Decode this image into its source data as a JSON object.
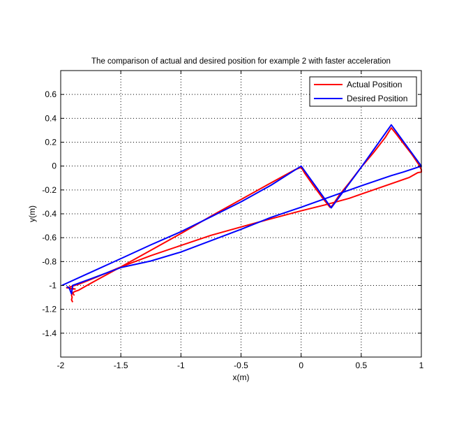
{
  "chart_data": {
    "type": "line",
    "title": "The comparison of actual and desired position for example 2 with faster acceleration",
    "xlabel": "x(m)",
    "ylabel": "y(m)",
    "xlim": [
      -2,
      1
    ],
    "ylim": [
      -1.6,
      0.8
    ],
    "xticks": [
      -2,
      -1.5,
      -1,
      -0.5,
      0,
      0.5,
      1
    ],
    "xtick_labels": [
      "-2",
      "-1.5",
      "-1",
      "-0.5",
      "0",
      "0.5",
      "1"
    ],
    "yticks": [
      -1.4,
      -1.2,
      -1,
      -0.8,
      -0.6,
      -0.4,
      -0.2,
      0,
      0.2,
      0.4,
      0.6
    ],
    "ytick_labels": [
      "-1.4",
      "-1.2",
      "-1",
      "-0.8",
      "-0.6",
      "-0.4",
      "-0.2",
      "0",
      "0.2",
      "0.4",
      "0.6"
    ],
    "grid": true,
    "legend_position": "top-right",
    "series": [
      {
        "name": "Actual Position",
        "color": "#ff0000",
        "points": [
          [
            -1.9,
            -1.14
          ],
          [
            -1.91,
            -1.12
          ],
          [
            -1.905,
            -1.1
          ],
          [
            -1.91,
            -1.08
          ],
          [
            -1.9,
            -1.06
          ],
          [
            -1.89,
            -1.08
          ],
          [
            -1.9,
            -1.06
          ],
          [
            -1.88,
            -1.05
          ],
          [
            -1.85,
            -1.04
          ],
          [
            -1.8,
            -1.01
          ],
          [
            -1.7,
            -0.955
          ],
          [
            -1.5,
            -0.845
          ],
          [
            -1.25,
            -0.705
          ],
          [
            -1.0,
            -0.565
          ],
          [
            -0.75,
            -0.42
          ],
          [
            -0.5,
            -0.28
          ],
          [
            -0.25,
            -0.14
          ],
          [
            -0.05,
            -0.03
          ],
          [
            0.0,
            -0.01
          ],
          [
            0.03,
            -0.06
          ],
          [
            0.1,
            -0.16
          ],
          [
            0.18,
            -0.27
          ],
          [
            0.24,
            -0.345
          ],
          [
            0.26,
            -0.33
          ],
          [
            0.32,
            -0.24
          ],
          [
            0.4,
            -0.14
          ],
          [
            0.5,
            -0.01
          ],
          [
            0.6,
            0.11
          ],
          [
            0.7,
            0.24
          ],
          [
            0.75,
            0.32
          ],
          [
            0.79,
            0.27
          ],
          [
            0.85,
            0.19
          ],
          [
            0.92,
            0.1
          ],
          [
            0.98,
            0.01
          ],
          [
            1.0,
            -0.03
          ],
          [
            1.0,
            -0.05
          ],
          [
            0.97,
            -0.055
          ],
          [
            0.9,
            -0.095
          ],
          [
            0.8,
            -0.13
          ],
          [
            0.6,
            -0.2
          ],
          [
            0.4,
            -0.27
          ],
          [
            0.2,
            -0.325
          ],
          [
            0.0,
            -0.375
          ],
          [
            -0.3,
            -0.455
          ],
          [
            -0.5,
            -0.51
          ],
          [
            -0.75,
            -0.58
          ],
          [
            -1.0,
            -0.665
          ],
          [
            -1.25,
            -0.75
          ],
          [
            -1.5,
            -0.845
          ],
          [
            -1.7,
            -0.93
          ],
          [
            -1.85,
            -0.99
          ],
          [
            -1.95,
            -1.02
          ],
          [
            -1.9,
            -1.025
          ],
          [
            -1.88,
            -1.03
          ],
          [
            -1.92,
            -1.03
          ]
        ]
      },
      {
        "name": "Desired Position",
        "color": "#0000ff",
        "points": [
          [
            -1.99,
            -1.0
          ],
          [
            -1.75,
            -0.89
          ],
          [
            -1.5,
            -0.775
          ],
          [
            -1.25,
            -0.66
          ],
          [
            -1.0,
            -0.55
          ],
          [
            -0.75,
            -0.425
          ],
          [
            -0.5,
            -0.3
          ],
          [
            -0.25,
            -0.16
          ],
          [
            0.0,
            0.0
          ],
          [
            0.25,
            -0.35
          ],
          [
            0.5,
            -0.01
          ],
          [
            0.75,
            0.345
          ],
          [
            1.0,
            0.0
          ],
          [
            0.85,
            -0.05
          ],
          [
            0.75,
            -0.08
          ],
          [
            0.5,
            -0.165
          ],
          [
            0.25,
            -0.255
          ],
          [
            0.0,
            -0.345
          ],
          [
            -0.25,
            -0.43
          ],
          [
            -0.5,
            -0.53
          ],
          [
            -0.75,
            -0.625
          ],
          [
            -1.0,
            -0.72
          ],
          [
            -1.25,
            -0.795
          ],
          [
            -1.5,
            -0.85
          ],
          [
            -1.75,
            -0.945
          ],
          [
            -1.9,
            -1.0
          ],
          [
            -1.91,
            -1.07
          ],
          [
            -1.93,
            -1.02
          ],
          [
            -1.95,
            -1.01
          ]
        ]
      }
    ]
  }
}
